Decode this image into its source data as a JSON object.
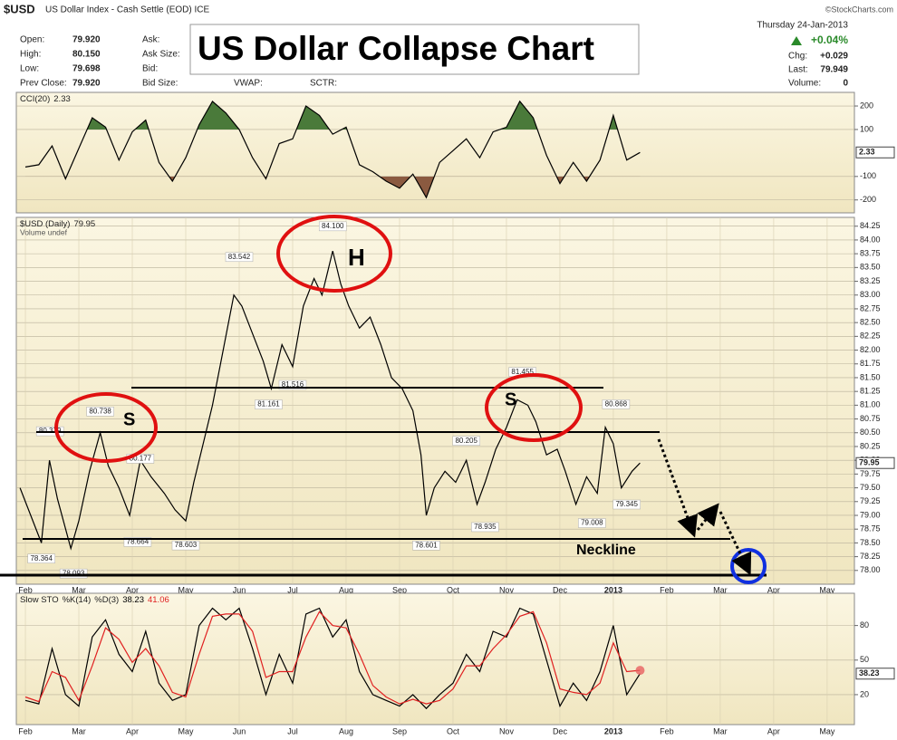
{
  "header": {
    "symbol": "$USD",
    "description": "US Dollar Index - Cash Settle (EOD) ICE",
    "credit": "©StockCharts.com",
    "date": "Thursday 24-Jan-2013",
    "change_pct": "+0.04%",
    "chg_label": "Chg:",
    "chg": "+0.029",
    "last_label": "Last:",
    "last": "79.949",
    "volume_label": "Volume:",
    "volume": "0",
    "quote": [
      [
        "Open:",
        "79.920"
      ],
      [
        "High:",
        "80.150"
      ],
      [
        "Low:",
        "79.698"
      ],
      [
        "Prev Close:",
        "79.920"
      ]
    ],
    "quote2": [
      "Ask:",
      "Ask Size:",
      "Bid:",
      "Bid Size:"
    ],
    "extra": [
      "VWAP:",
      "SCTR:"
    ]
  },
  "title": "US Dollar Collapse Chart",
  "pattern_labels": [
    "S",
    "H",
    "S",
    "Neckline"
  ],
  "chart_data": [
    {
      "type": "line",
      "title": "CCI(20)",
      "xlim": [
        -0.17,
        15.51
      ],
      "ylim": [
        -255,
        258
      ],
      "yticks": [
        200,
        100,
        -100,
        -200
      ],
      "grid": true,
      "x": [
        0,
        0.25,
        0.5,
        0.75,
        1,
        1.25,
        1.5,
        1.75,
        2,
        2.25,
        2.5,
        2.75,
        3,
        3.25,
        3.5,
        3.75,
        4,
        4.25,
        4.5,
        4.75,
        5,
        5.25,
        5.5,
        5.75,
        6,
        6.25,
        6.5,
        6.75,
        7,
        7.25,
        7.5,
        7.75,
        8,
        8.25,
        8.5,
        8.75,
        9,
        9.25,
        9.5,
        9.75,
        10,
        10.25,
        10.5,
        10.75,
        11,
        11.25,
        11.5
      ],
      "series": [
        {
          "name": "CCI(20)",
          "color": "#000000",
          "values": [
            -60,
            -50,
            30,
            -110,
            20,
            150,
            110,
            -30,
            90,
            140,
            -40,
            -120,
            -20,
            120,
            220,
            170,
            100,
            -20,
            -110,
            40,
            60,
            200,
            160,
            80,
            110,
            -50,
            -80,
            -120,
            -150,
            -90,
            -190,
            -40,
            10,
            60,
            -20,
            90,
            110,
            220,
            150,
            -10,
            -130,
            -40,
            -120,
            -30,
            160,
            -30,
            2.33
          ]
        }
      ],
      "overbought_color": "#4a7a3a",
      "oversold_color": "#8b5a40"
    },
    {
      "type": "line",
      "title": "$USD (Daily)",
      "note": "Volume undef",
      "xlim": [
        -0.17,
        15.51
      ],
      "ylim": [
        77.75,
        84.41
      ],
      "yticks": [
        84.25,
        {
          "value": 84,
          "label": "84.00"
        },
        83.75,
        {
          "value": 83.5,
          "label": "83.50"
        },
        83.25,
        {
          "value": 83,
          "label": "83.00"
        },
        82.75,
        {
          "value": 82.5,
          "label": "82.50"
        },
        82.25,
        {
          "value": 82,
          "label": "82.00"
        },
        81.75,
        {
          "value": 81.5,
          "label": "81.50"
        },
        81.25,
        {
          "value": 81,
          "label": "81.00"
        },
        80.75,
        {
          "value": 80.5,
          "label": "80.50"
        },
        80.25,
        {
          "value": 80,
          "label": "80.00"
        },
        79.75,
        {
          "value": 79.5,
          "label": "79.50"
        },
        79.25,
        {
          "value": 79,
          "label": "79.00"
        },
        78.75,
        {
          "value": 78.5,
          "label": "78.50"
        },
        78.25,
        {
          "value": 78,
          "label": "78.00"
        }
      ],
      "xticks": [
        {
          "value": 0,
          "label": "Feb"
        },
        {
          "value": 1,
          "label": "Mar"
        },
        {
          "value": 2,
          "label": "Apr"
        },
        {
          "value": 3,
          "label": "May"
        },
        {
          "value": 4,
          "label": "Jun"
        },
        {
          "value": 5,
          "label": "Jul"
        },
        {
          "value": 6,
          "label": "Aug"
        },
        {
          "value": 7,
          "label": "Sep"
        },
        {
          "value": 8,
          "label": "Oct"
        },
        {
          "value": 9,
          "label": "Nov"
        },
        {
          "value": 10,
          "label": "Dec"
        },
        {
          "value": 11,
          "label": "2013"
        },
        {
          "value": 12,
          "label": "Feb"
        },
        {
          "value": 13,
          "label": "Mar"
        },
        {
          "value": 14,
          "label": "Apr"
        },
        {
          "value": 15,
          "label": "May"
        }
      ],
      "grid": true,
      "x": [
        -0.1,
        0.1,
        0.3,
        0.45,
        0.6,
        0.85,
        1,
        1.2,
        1.4,
        1.55,
        1.75,
        1.95,
        2.15,
        2.35,
        2.6,
        2.8,
        3,
        3.15,
        3.35,
        3.5,
        3.7,
        3.9,
        4.05,
        4.25,
        4.45,
        4.6,
        4.8,
        5,
        5.2,
        5.4,
        5.55,
        5.75,
        5.9,
        6.05,
        6.25,
        6.45,
        6.65,
        6.85,
        7.05,
        7.25,
        7.4,
        7.5,
        7.65,
        7.85,
        8.05,
        8.25,
        8.45,
        8.6,
        8.8,
        9,
        9.2,
        9.4,
        9.55,
        9.75,
        9.95,
        10.1,
        10.3,
        10.5,
        10.7,
        10.85,
        11,
        11.15,
        11.35,
        11.5
      ],
      "series": [
        {
          "name": "$USD (Daily)",
          "color": "#000000",
          "values": [
            79.5,
            79.0,
            78.5,
            80.0,
            79.3,
            78.4,
            78.9,
            79.8,
            80.5,
            79.9,
            79.5,
            79.0,
            80.0,
            79.7,
            79.4,
            79.1,
            78.9,
            79.6,
            80.4,
            81.0,
            82.0,
            83.0,
            82.8,
            82.3,
            81.8,
            81.3,
            82.1,
            81.7,
            82.8,
            83.3,
            83.0,
            83.8,
            83.2,
            82.8,
            82.4,
            82.6,
            82.1,
            81.5,
            81.3,
            80.9,
            80.1,
            79.0,
            79.5,
            79.8,
            79.6,
            80.0,
            79.2,
            79.6,
            80.2,
            80.6,
            81.1,
            81.0,
            80.7,
            80.1,
            80.2,
            79.8,
            79.2,
            79.7,
            79.4,
            80.6,
            80.3,
            79.5,
            79.8,
            79.95
          ]
        }
      ],
      "annotations": [
        {
          "x": 5.75,
          "value": 84.1,
          "label": "84.100",
          "kind": "high"
        },
        {
          "x": 4.0,
          "value": 83.542,
          "label": "83.542",
          "kind": "high"
        },
        {
          "x": 5.0,
          "value": 81.516,
          "label": "81.516",
          "kind": "low"
        },
        {
          "x": 4.55,
          "value": 81.161,
          "label": "81.161",
          "kind": "low"
        },
        {
          "x": 1.4,
          "value": 80.738,
          "label": "80.738",
          "kind": "high"
        },
        {
          "x": 0.46,
          "value": 80.379,
          "label": "80.379",
          "kind": "high"
        },
        {
          "x": 2.15,
          "value": 80.177,
          "label": "80.177",
          "kind": "low"
        },
        {
          "x": 2.1,
          "value": 78.664,
          "label": "78.664",
          "kind": "low"
        },
        {
          "x": 3.0,
          "value": 78.603,
          "label": "78.603",
          "kind": "low"
        },
        {
          "x": 0.3,
          "value": 78.364,
          "label": "78.364",
          "kind": "low"
        },
        {
          "x": 0.9,
          "value": 78.093,
          "label": "78.093",
          "kind": "low"
        },
        {
          "x": 9.3,
          "value": 81.455,
          "label": "81.455",
          "kind": "high"
        },
        {
          "x": 8.25,
          "value": 80.205,
          "label": "80.205",
          "kind": "high"
        },
        {
          "x": 11.05,
          "value": 80.868,
          "label": "80.868",
          "kind": "high"
        },
        {
          "x": 11.25,
          "value": 79.345,
          "label": "79.345",
          "kind": "low"
        },
        {
          "x": 10.6,
          "value": 79.008,
          "label": "79.008",
          "kind": "low"
        },
        {
          "x": 8.6,
          "value": 78.935,
          "label": "78.935",
          "kind": "low"
        },
        {
          "x": 7.5,
          "value": 78.601,
          "label": "78.601",
          "kind": "low"
        }
      ]
    },
    {
      "type": "line",
      "title": "Slow STO",
      "xlim": [
        -0.17,
        15.51
      ],
      "ylim": [
        -6,
        108
      ],
      "yticks": [
        80,
        50,
        20
      ],
      "grid": true,
      "xticks": [
        {
          "value": 0,
          "label": "Feb"
        },
        {
          "value": 1,
          "label": "Mar"
        },
        {
          "value": 2,
          "label": "Apr"
        },
        {
          "value": 3,
          "label": "May"
        },
        {
          "value": 4,
          "label": "Jun"
        },
        {
          "value": 5,
          "label": "Jul"
        },
        {
          "value": 6,
          "label": "Aug"
        },
        {
          "value": 7,
          "label": "Sep"
        },
        {
          "value": 8,
          "label": "Oct"
        },
        {
          "value": 9,
          "label": "Nov"
        },
        {
          "value": 10,
          "label": "Dec"
        },
        {
          "value": 11,
          "label": "2013"
        },
        {
          "value": 12,
          "label": "Feb"
        },
        {
          "value": 13,
          "label": "Mar"
        },
        {
          "value": 14,
          "label": "Apr"
        },
        {
          "value": 15,
          "label": "May"
        }
      ],
      "x": [
        0,
        0.25,
        0.5,
        0.75,
        1,
        1.25,
        1.5,
        1.75,
        2,
        2.25,
        2.5,
        2.75,
        3,
        3.25,
        3.5,
        3.75,
        4,
        4.25,
        4.5,
        4.75,
        5,
        5.25,
        5.5,
        5.75,
        6,
        6.25,
        6.5,
        6.75,
        7,
        7.25,
        7.5,
        7.75,
        8,
        8.25,
        8.5,
        8.75,
        9,
        9.25,
        9.5,
        9.75,
        10,
        10.25,
        10.5,
        10.75,
        11,
        11.25,
        11.5
      ],
      "series": [
        {
          "name": "%K(14)",
          "color": "#000000",
          "values": [
            15,
            12,
            60,
            20,
            10,
            70,
            85,
            55,
            40,
            75,
            30,
            15,
            20,
            80,
            95,
            85,
            95,
            60,
            20,
            55,
            30,
            90,
            95,
            70,
            85,
            40,
            20,
            15,
            10,
            20,
            8,
            20,
            30,
            55,
            40,
            75,
            70,
            95,
            90,
            50,
            10,
            30,
            15,
            40,
            80,
            20,
            38.23
          ]
        },
        {
          "name": "%D(3)",
          "color": "#e02020",
          "values": [
            18,
            14,
            40,
            35,
            15,
            45,
            78,
            68,
            48,
            60,
            45,
            22,
            18,
            55,
            88,
            90,
            90,
            75,
            35,
            40,
            40,
            70,
            92,
            80,
            78,
            55,
            28,
            18,
            12,
            16,
            12,
            15,
            25,
            45,
            45,
            60,
            72,
            88,
            92,
            65,
            25,
            22,
            20,
            30,
            65,
            40,
            41.06
          ]
        }
      ]
    }
  ]
}
